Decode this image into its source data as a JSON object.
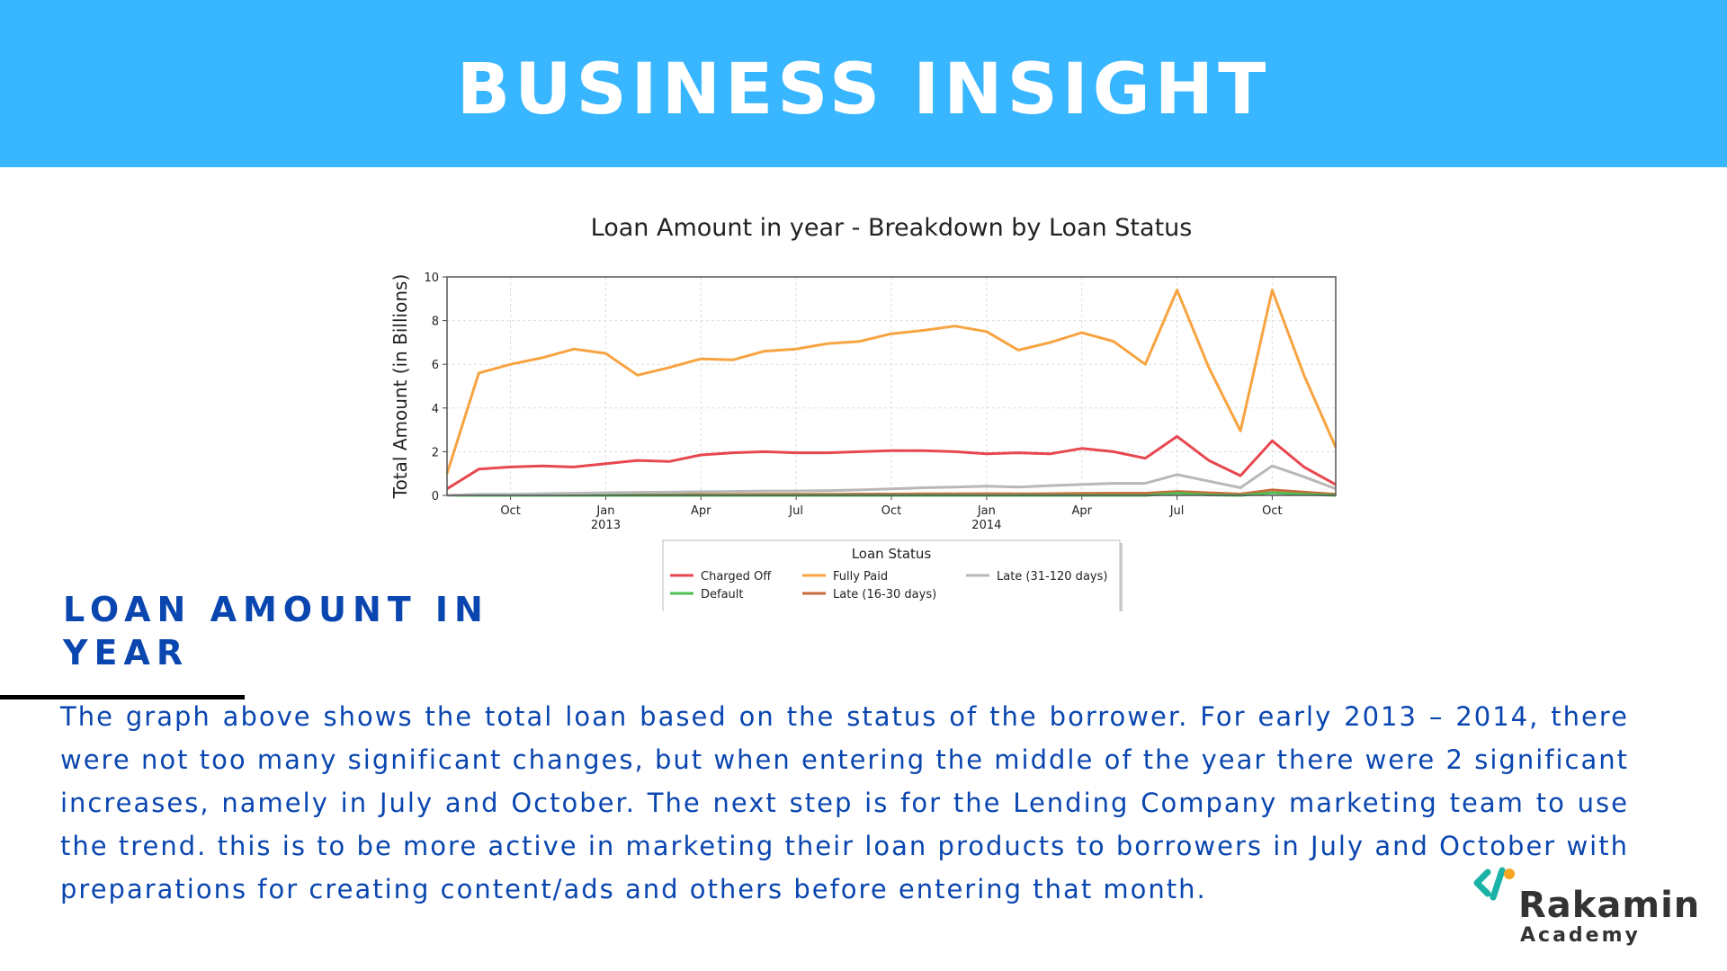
{
  "header": {
    "title": "BUSINESS INSIGHT",
    "color": "#38b6ff"
  },
  "section": {
    "title": "LOAN AMOUNT IN YEAR",
    "body": "The graph above shows the total loan based on the status of the borrower. For early 2013 – 2014, there were not too many significant changes, but when entering the middle of the year there were 2 significant increases, namely in July and October. The next step is for the Lending Company marketing team to use the trend. this is to be more active in marketing their loan products to borrowers in July and October with preparations for creating content/ads and others before entering that month."
  },
  "logo": {
    "name": "Rakamin",
    "subtitle": "Academy",
    "mark_colors": [
      "#1bb3a7",
      "#f5a623"
    ]
  },
  "chart_data": {
    "type": "line",
    "title": "Loan Amount in year  - Breakdown by Loan Status",
    "xlabel": "",
    "ylabel": "Total Amount (in Billions)",
    "ylim": [
      0,
      10
    ],
    "yticks": [
      "0",
      "2",
      "4",
      "6",
      "8",
      "10"
    ],
    "x": [
      "2012-08",
      "2012-09",
      "2012-10",
      "2012-11",
      "2012-12",
      "2013-01",
      "2013-02",
      "2013-03",
      "2013-04",
      "2013-05",
      "2013-06",
      "2013-07",
      "2013-08",
      "2013-09",
      "2013-10",
      "2013-11",
      "2013-12",
      "2014-01",
      "2014-02",
      "2014-03",
      "2014-04",
      "2014-05",
      "2014-06",
      "2014-07",
      "2014-08",
      "2014-09",
      "2014-10",
      "2014-11",
      "2014-12"
    ],
    "xticks": [
      {
        "x": "2012-10",
        "label": "Oct",
        "sub": ""
      },
      {
        "x": "2013-01",
        "label": "Jan",
        "sub": "2013"
      },
      {
        "x": "2013-04",
        "label": "Apr",
        "sub": ""
      },
      {
        "x": "2013-07",
        "label": "Jul",
        "sub": ""
      },
      {
        "x": "2013-10",
        "label": "Oct",
        "sub": ""
      },
      {
        "x": "2014-01",
        "label": "Jan",
        "sub": "2014"
      },
      {
        "x": "2014-04",
        "label": "Apr",
        "sub": ""
      },
      {
        "x": "2014-07",
        "label": "Jul",
        "sub": ""
      },
      {
        "x": "2014-10",
        "label": "Oct",
        "sub": ""
      }
    ],
    "grid": true,
    "legend": {
      "title": "Loan Status",
      "placement": "bottom-center"
    },
    "series": [
      {
        "name": "Charged Off",
        "color": "#e8474f",
        "values": [
          0.3,
          1.2,
          1.3,
          1.35,
          1.3,
          1.45,
          1.6,
          1.55,
          1.85,
          1.95,
          2.0,
          1.95,
          1.95,
          2.0,
          2.05,
          2.05,
          2.0,
          1.9,
          1.95,
          1.9,
          2.15,
          2.0,
          1.7,
          2.7,
          1.6,
          0.9,
          2.5,
          1.3,
          0.5
        ]
      },
      {
        "name": "Fully Paid",
        "color": "#f7a440",
        "values": [
          1.0,
          5.6,
          6.0,
          6.3,
          6.7,
          6.5,
          5.5,
          5.85,
          6.25,
          6.2,
          6.6,
          6.7,
          6.95,
          7.05,
          7.4,
          7.55,
          7.75,
          7.5,
          6.65,
          7.0,
          7.45,
          7.05,
          6.0,
          9.4,
          5.85,
          2.95,
          9.4,
          5.5,
          2.2
        ]
      },
      {
        "name": "Late (31-120 days)",
        "color": "#b8b8b8",
        "values": [
          0.0,
          0.05,
          0.05,
          0.08,
          0.1,
          0.12,
          0.14,
          0.15,
          0.17,
          0.18,
          0.2,
          0.2,
          0.22,
          0.25,
          0.3,
          0.35,
          0.38,
          0.42,
          0.38,
          0.45,
          0.5,
          0.55,
          0.55,
          0.95,
          0.65,
          0.35,
          1.35,
          0.85,
          0.3
        ]
      },
      {
        "name": "Default",
        "color": "#4fbf54",
        "values": [
          0,
          0,
          0,
          0,
          0,
          0,
          0,
          0,
          0,
          0,
          0,
          0,
          0,
          0,
          0,
          0,
          0,
          0,
          0,
          0,
          0,
          0,
          0,
          0.1,
          0.02,
          0,
          0.12,
          0.05,
          0
        ]
      },
      {
        "name": "Late (16-30 days)",
        "color": "#c86a3a",
        "values": [
          0,
          0.01,
          0.01,
          0.02,
          0.02,
          0.03,
          0.03,
          0.03,
          0.04,
          0.04,
          0.05,
          0.05,
          0.05,
          0.06,
          0.06,
          0.07,
          0.07,
          0.08,
          0.07,
          0.08,
          0.09,
          0.1,
          0.1,
          0.18,
          0.12,
          0.06,
          0.25,
          0.15,
          0.05
        ]
      }
    ]
  }
}
